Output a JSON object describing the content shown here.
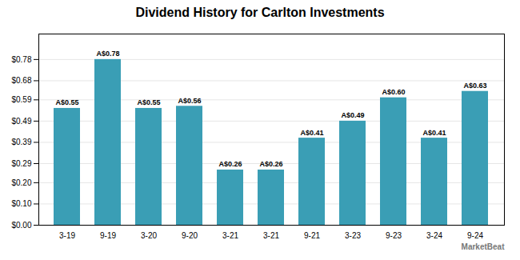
{
  "chart_data": {
    "type": "bar",
    "title": "Dividend History for Carlton Investments",
    "categories": [
      "3-19",
      "9-19",
      "3-20",
      "9-20",
      "3-21",
      "3-21",
      "9-21",
      "3-23",
      "9-23",
      "3-24",
      "9-24"
    ],
    "values": [
      0.55,
      0.78,
      0.55,
      0.56,
      0.26,
      0.26,
      0.41,
      0.49,
      0.6,
      0.41,
      0.63
    ],
    "value_labels": [
      "A$0.55",
      "A$0.78",
      "A$0.55",
      "A$0.56",
      "A$0.26",
      "A$0.26",
      "A$0.41",
      "A$0.49",
      "A$0.60",
      "A$0.41",
      "A$0.63"
    ],
    "data_labels": true,
    "color": "#3a9eb5",
    "ylim": [
      0.0,
      0.9
    ],
    "yticks": [
      {
        "value": 0.0,
        "label": "$0.00"
      },
      {
        "value": 0.1,
        "label": "$0.10"
      },
      {
        "value": 0.2,
        "label": "$0.20"
      },
      {
        "value": 0.29,
        "label": "$0.29"
      },
      {
        "value": 0.39,
        "label": "$0.39"
      },
      {
        "value": 0.49,
        "label": "$0.49"
      },
      {
        "value": 0.59,
        "label": "$0.59"
      },
      {
        "value": 0.68,
        "label": "$0.68"
      },
      {
        "value": 0.78,
        "label": "$0.78"
      }
    ],
    "grid": true,
    "annotations": [
      "MarketBeat"
    ]
  }
}
